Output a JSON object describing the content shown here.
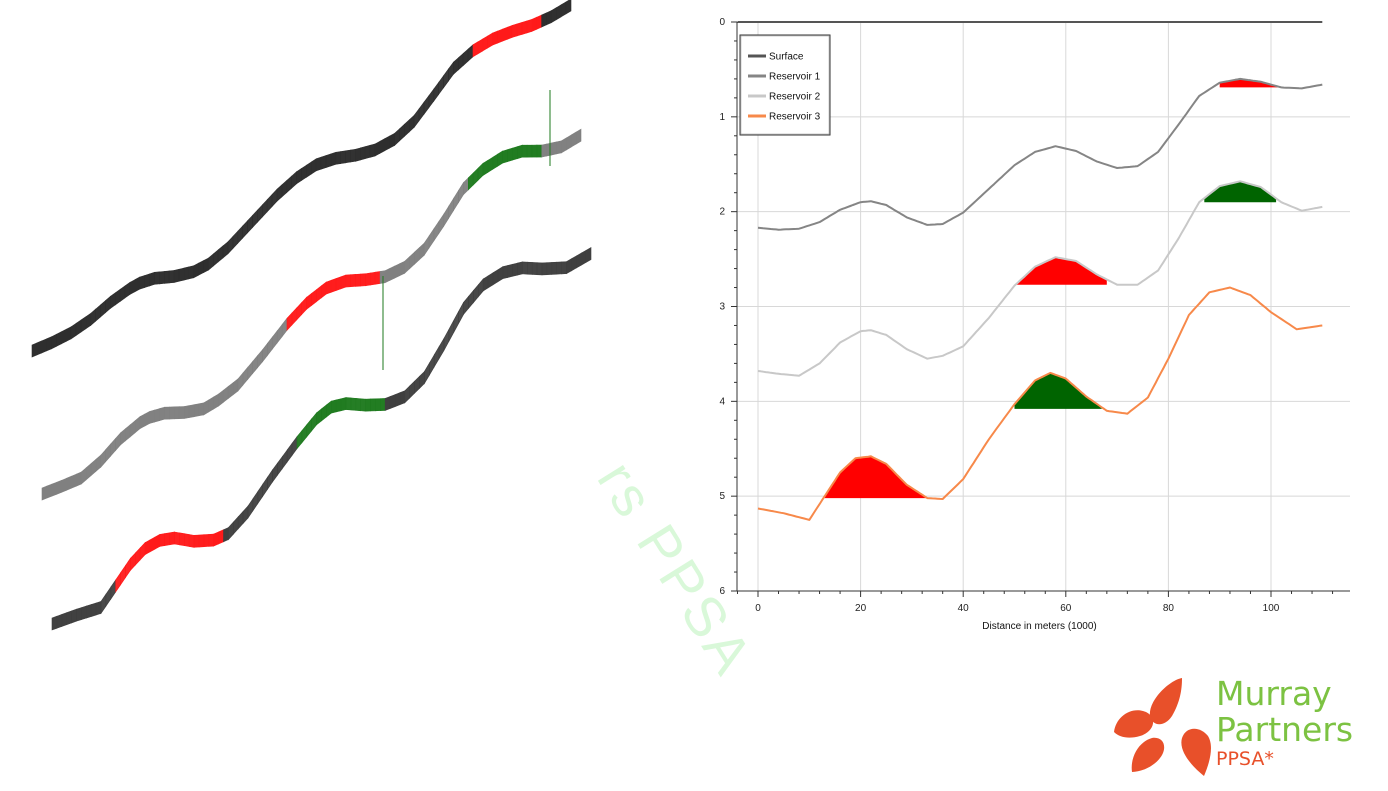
{
  "chart_data": {
    "type": "line",
    "title": "",
    "xlabel": "Distance in meters (1000)",
    "ylabel": "",
    "xlim": [
      -4,
      115
    ],
    "ylim": [
      0,
      6
    ],
    "y_inverted": true,
    "xticks": [
      "0",
      "20",
      "40",
      "60",
      "80",
      "100"
    ],
    "yticks": [
      "0",
      "1",
      "2",
      "3",
      "4",
      "5",
      "6"
    ],
    "grid": true,
    "legend_position": "top-left",
    "series": [
      {
        "name": "Surface",
        "color": "#555555",
        "x": [
          -4,
          110
        ],
        "y": [
          0.0,
          0.0
        ]
      },
      {
        "name": "Reservoir 1",
        "color": "#858585",
        "x": [
          0,
          4,
          8,
          12,
          16,
          20,
          22,
          25,
          29,
          33,
          36,
          40,
          45,
          50,
          54,
          58,
          62,
          66,
          70,
          74,
          78,
          82,
          86,
          90,
          94,
          98,
          102,
          106,
          110
        ],
        "y": [
          2.17,
          2.19,
          2.18,
          2.11,
          1.98,
          1.9,
          1.89,
          1.93,
          2.06,
          2.14,
          2.13,
          2.01,
          1.76,
          1.51,
          1.37,
          1.31,
          1.36,
          1.47,
          1.54,
          1.52,
          1.37,
          1.08,
          0.78,
          0.64,
          0.6,
          0.63,
          0.69,
          0.7,
          0.66
        ]
      },
      {
        "name": "Reservoir 2",
        "color": "#c8c8c8",
        "x": [
          0,
          4,
          8,
          12,
          16,
          20,
          22,
          25,
          29,
          33,
          36,
          40,
          45,
          50,
          54,
          58,
          62,
          66,
          70,
          74,
          78,
          82,
          86,
          90,
          94,
          98,
          102,
          106,
          110
        ],
        "y": [
          3.68,
          3.71,
          3.73,
          3.6,
          3.38,
          3.26,
          3.25,
          3.3,
          3.45,
          3.55,
          3.52,
          3.42,
          3.12,
          2.78,
          2.58,
          2.48,
          2.52,
          2.66,
          2.77,
          2.77,
          2.62,
          2.28,
          1.9,
          1.73,
          1.68,
          1.74,
          1.9,
          1.99,
          1.95
        ]
      },
      {
        "name": "Reservoir 3",
        "color": "#f7894a",
        "x": [
          0,
          5,
          10,
          13,
          16,
          19,
          22,
          25,
          29,
          33,
          36,
          40,
          45,
          50,
          54,
          57,
          60,
          64,
          68,
          72,
          76,
          80,
          84,
          88,
          92,
          96,
          100,
          105,
          110
        ],
        "y": [
          5.13,
          5.18,
          5.25,
          5.0,
          4.75,
          4.6,
          4.58,
          4.66,
          4.88,
          5.02,
          5.03,
          4.82,
          4.4,
          4.03,
          3.78,
          3.7,
          3.76,
          3.95,
          4.1,
          4.13,
          3.96,
          3.55,
          3.09,
          2.85,
          2.8,
          2.88,
          3.06,
          3.24,
          3.2
        ]
      }
    ],
    "traps": [
      {
        "series": "Reservoir 1",
        "color": "#ff0000",
        "x_from": 90,
        "x_to": 103,
        "spill_depth": 0.69
      },
      {
        "series": "Reservoir 2",
        "color": "#ff0000",
        "x_from": 50,
        "x_to": 68,
        "spill_depth": 2.77
      },
      {
        "series": "Reservoir 2",
        "color": "#006400",
        "x_from": 87,
        "x_to": 101,
        "spill_depth": 1.9
      },
      {
        "series": "Reservoir 3",
        "color": "#ff0000",
        "x_from": 13,
        "x_to": 34,
        "spill_depth": 5.02
      },
      {
        "series": "Reservoir 3",
        "color": "#006400",
        "x_from": 50,
        "x_to": 67,
        "spill_depth": 4.08
      }
    ]
  },
  "perspective_view": {
    "layers": [
      {
        "name": "Surface",
        "color": "#2e2e2e"
      },
      {
        "name": "Reservoir 1",
        "color": "#808080"
      },
      {
        "name": "Reservoir 2",
        "color": "#3f3f3f"
      }
    ],
    "highlight_colors": {
      "oil": "#ff1a1a",
      "gas": "#1e7a1e"
    }
  },
  "watermark": {
    "text": "rs PPSA"
  },
  "logo": {
    "line1": "Murray",
    "line2": "Partners",
    "line3": "PPSA*",
    "petal_color": "#e8502a"
  }
}
